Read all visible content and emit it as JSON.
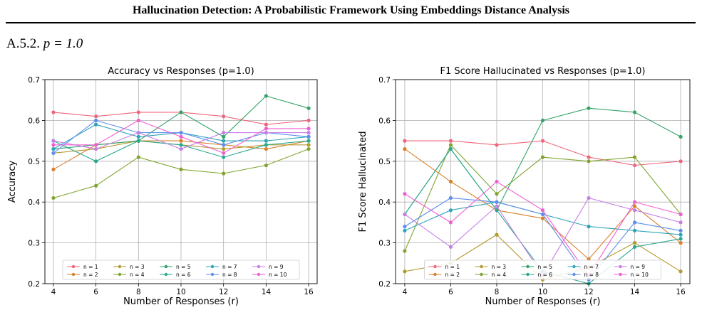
{
  "page": {
    "running_title": "Hallucination Detection: A Probabilistic Framework Using Embeddings Distance Analysis",
    "section_number": "A.5.2.",
    "section_param": "p = 1.0"
  },
  "colors": {
    "n1": "#f0657a",
    "n2": "#d9802a",
    "n3": "#b39a2e",
    "n4": "#7fa52f",
    "n5": "#33a468",
    "n6": "#2aa890",
    "n7": "#2ea4b8",
    "n8": "#5e8ff0",
    "n9": "#c77de8",
    "n10": "#ef5fd2"
  },
  "chart_data": [
    {
      "type": "line",
      "title": "Accuracy vs Responses (p=1.0)",
      "xlabel": "Number of Responses (r)",
      "ylabel": "Accuracy",
      "x": [
        4,
        6,
        8,
        10,
        12,
        14,
        16
      ],
      "xlim": [
        3.6,
        16.4
      ],
      "ylim": [
        0.2,
        0.7
      ],
      "yticks": [
        "0.2",
        "0.3",
        "0.4",
        "0.5",
        "0.6",
        "0.7"
      ],
      "xticks": [
        "4",
        "6",
        "8",
        "10",
        "12",
        "14",
        "16"
      ],
      "grid": true,
      "legend_position": "lower center",
      "series": [
        {
          "name": "n = 1",
          "values": [
            0.62,
            0.61,
            0.62,
            0.62,
            0.61,
            0.59,
            0.6
          ]
        },
        {
          "name": "n = 2",
          "values": [
            0.48,
            0.54,
            0.55,
            0.55,
            0.54,
            0.53,
            0.55
          ]
        },
        {
          "name": "n = 3",
          "values": [
            0.52,
            0.53,
            0.55,
            0.54,
            0.53,
            0.54,
            0.54
          ]
        },
        {
          "name": "n = 4",
          "values": [
            0.41,
            0.44,
            0.51,
            0.48,
            0.47,
            0.49,
            0.53
          ]
        },
        {
          "name": "n = 5",
          "values": [
            0.53,
            0.54,
            0.55,
            0.62,
            0.56,
            0.66,
            0.63
          ]
        },
        {
          "name": "n = 6",
          "values": [
            0.55,
            0.5,
            0.55,
            0.54,
            0.51,
            0.54,
            0.55
          ]
        },
        {
          "name": "n = 7",
          "values": [
            0.53,
            0.59,
            0.56,
            0.57,
            0.55,
            0.55,
            0.56
          ]
        },
        {
          "name": "n = 8",
          "values": [
            0.52,
            0.6,
            0.57,
            0.57,
            0.54,
            0.57,
            0.56
          ]
        },
        {
          "name": "n = 9",
          "values": [
            0.55,
            0.53,
            0.57,
            0.53,
            0.57,
            0.57,
            0.57
          ]
        },
        {
          "name": "n = 10",
          "values": [
            0.54,
            0.54,
            0.6,
            0.56,
            0.52,
            0.58,
            0.58
          ]
        }
      ]
    },
    {
      "type": "line",
      "title": "F1 Score Hallucinated vs Responses (p=1.0)",
      "xlabel": "Number of Responses (r)",
      "ylabel": "F1 Score Hallucinated",
      "x": [
        4,
        6,
        8,
        10,
        12,
        14,
        16
      ],
      "xlim": [
        3.6,
        16.4
      ],
      "ylim": [
        0.2,
        0.7
      ],
      "yticks": [
        "0.2",
        "0.3",
        "0.4",
        "0.5",
        "0.6",
        "0.7"
      ],
      "xticks": [
        "4",
        "6",
        "8",
        "10",
        "12",
        "14",
        "16"
      ],
      "grid": true,
      "legend_position": "lower center",
      "series": [
        {
          "name": "n = 1",
          "values": [
            0.55,
            0.55,
            0.54,
            0.55,
            0.51,
            0.49,
            0.5
          ]
        },
        {
          "name": "n = 2",
          "values": [
            0.53,
            0.45,
            0.38,
            0.36,
            0.26,
            0.39,
            0.3
          ]
        },
        {
          "name": "n = 3",
          "values": [
            0.23,
            0.25,
            0.32,
            0.21,
            0.24,
            0.3,
            0.23
          ]
        },
        {
          "name": "n = 4",
          "values": [
            0.28,
            0.54,
            0.42,
            0.51,
            0.5,
            0.51,
            0.37
          ]
        },
        {
          "name": "n = 5",
          "values": [
            0.37,
            0.53,
            0.38,
            0.6,
            0.63,
            0.62,
            0.56
          ]
        },
        {
          "name": "n = 6",
          "values": [
            0.37,
            0.53,
            0.38,
            0.23,
            0.2,
            0.29,
            0.31
          ]
        },
        {
          "name": "n = 7",
          "values": [
            0.33,
            0.38,
            0.4,
            0.37,
            0.34,
            0.33,
            0.32
          ]
        },
        {
          "name": "n = 8",
          "values": [
            0.34,
            0.41,
            0.4,
            0.37,
            0.21,
            0.35,
            0.33
          ]
        },
        {
          "name": "n = 9",
          "values": [
            0.37,
            0.29,
            0.39,
            0.22,
            0.41,
            0.38,
            0.35
          ]
        },
        {
          "name": "n = 10",
          "values": [
            0.42,
            0.35,
            0.45,
            0.38,
            0.22,
            0.4,
            0.37
          ]
        }
      ]
    }
  ]
}
